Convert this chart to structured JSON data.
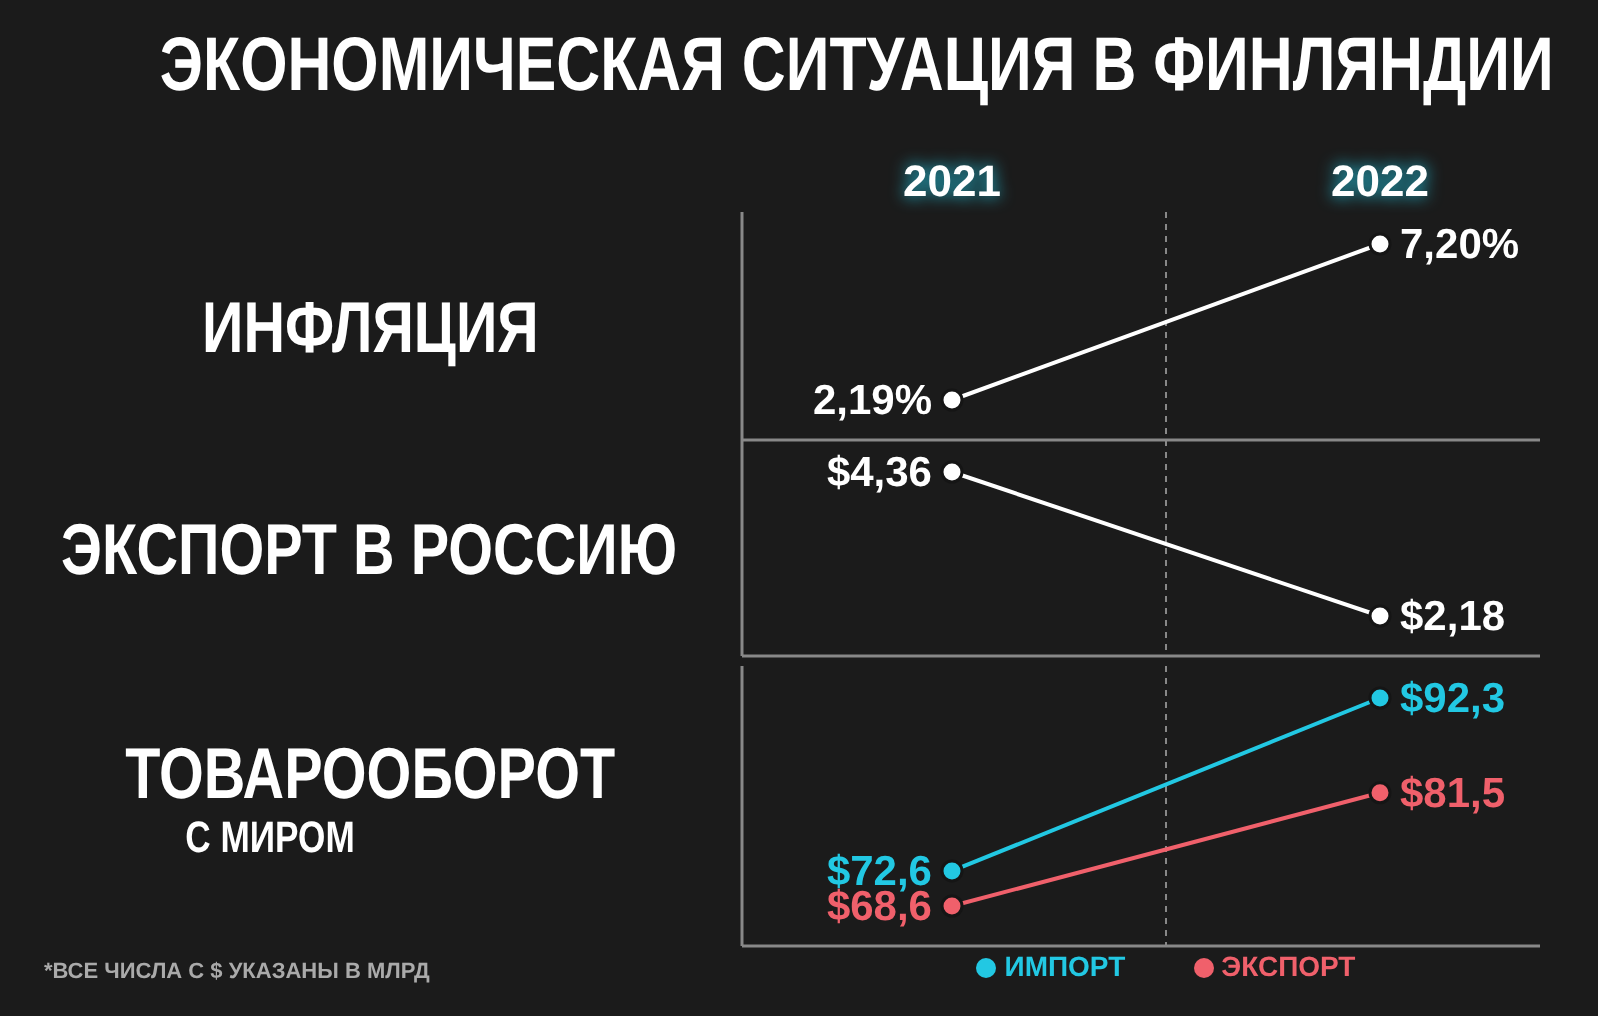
{
  "chart_data": [
    {
      "type": "line",
      "title": "ЭКОНОМИЧЕСКАЯ СИТУАЦИЯ В ФИНЛЯНДИИ",
      "ylabel": "ИНФЛЯЦИЯ",
      "categories": [
        "2021",
        "2022"
      ],
      "tick_labels": "x",
      "grid": "x",
      "marker": "circle",
      "series": [
        {
          "color": "#ffffff",
          "values": [
            2.19,
            7.2
          ],
          "value_labels": [
            "2,19%",
            "7,20%"
          ]
        }
      ]
    },
    {
      "type": "line",
      "ylabel": "ЭКСПОРТ В РОССИЮ",
      "categories": [
        "2021",
        "2022"
      ],
      "tick_labels": false,
      "grid": "x",
      "marker": "circle",
      "series": [
        {
          "color": "#ffffff",
          "values": [
            4.36,
            2.18
          ],
          "value_labels": [
            "$4,36",
            "$2,18"
          ]
        }
      ]
    },
    {
      "type": "line",
      "ylabel": "ТОВАРООБОРОТ\nС МИРОМ",
      "categories": [
        "2021",
        "2022"
      ],
      "tick_labels": false,
      "grid": "x",
      "marker": "circle",
      "legend": "bottom",
      "annotations": [
        "*ВСЕ ЧИСЛА С $ УКАЗАНЫ В МЛРД"
      ],
      "series": [
        {
          "name": "ИМПОРТ",
          "color": "#22c8e3",
          "values": [
            72.6,
            92.3
          ],
          "value_labels": [
            "$72,6",
            "$92,3"
          ]
        },
        {
          "name": "ЭКСПОРТ",
          "color": "#f0606b",
          "values": [
            68.6,
            81.5
          ],
          "value_labels": [
            "$68,6",
            "$81,5"
          ]
        }
      ]
    }
  ]
}
